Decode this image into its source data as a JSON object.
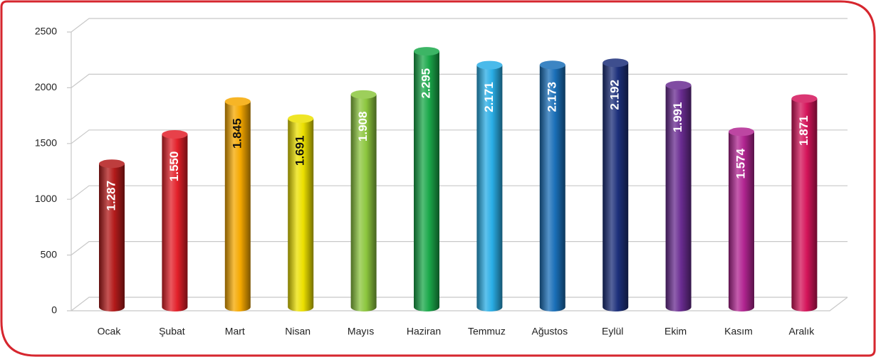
{
  "chart_data": {
    "type": "bar3d",
    "categories": [
      "Ocak",
      "Şubat",
      "Mart",
      "Nisan",
      "Mayıs",
      "Haziran",
      "Temmuz",
      "Ağustos",
      "Eylül",
      "Ekim",
      "Kasım",
      "Aralık"
    ],
    "values": [
      1287,
      1550,
      1845,
      1691,
      1908,
      2295,
      2171,
      2173,
      2192,
      1991,
      1574,
      1871
    ],
    "value_labels": [
      "1.287",
      "1.550",
      "1.845",
      "1.691",
      "1.908",
      "2.295",
      "2.171",
      "2.173",
      "2.192",
      "1.991",
      "1.574",
      "1.871"
    ],
    "colors": [
      "#b31b1b",
      "#e3202a",
      "#f5a800",
      "#ece000",
      "#8cc63e",
      "#1aa84a",
      "#2aaee6",
      "#1a6fb8",
      "#1c2f7a",
      "#6a2c91",
      "#b12591",
      "#d4145a"
    ],
    "label_colors": [
      "#ffffff",
      "#ffffff",
      "#111111",
      "#111111",
      "#ffffff",
      "#ffffff",
      "#ffffff",
      "#ffffff",
      "#ffffff",
      "#ffffff",
      "#ffffff",
      "#ffffff"
    ],
    "ylim": [
      0,
      2500
    ],
    "yticks": [
      0,
      500,
      1000,
      1500,
      2000,
      2500
    ],
    "grid": true
  }
}
